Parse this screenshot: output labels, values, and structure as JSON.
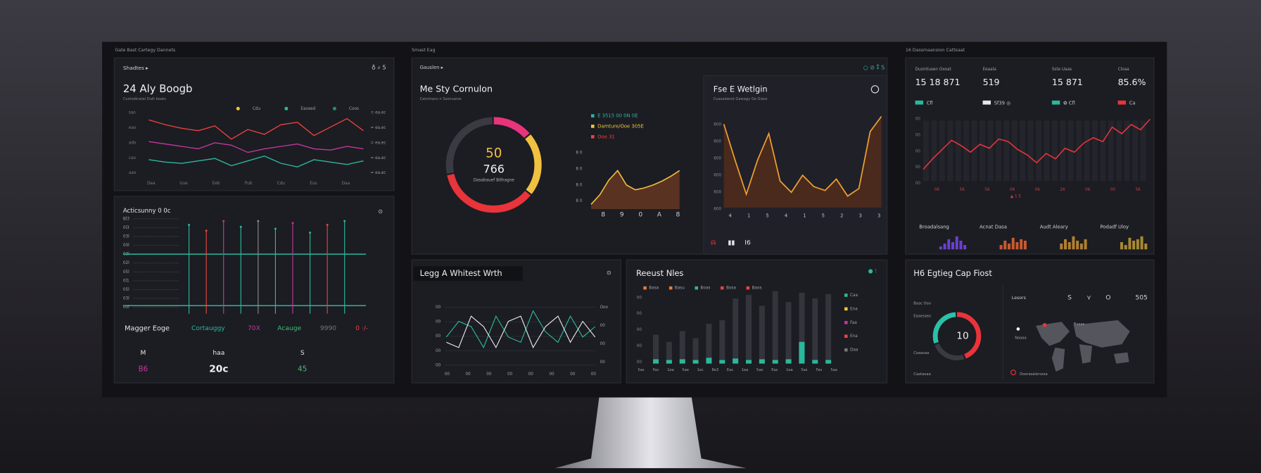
{
  "header": {
    "left": "Gate Bast Cartegy Dannets",
    "center": "Smast Eag",
    "right": "16 Dassmaansion Cattsaat"
  },
  "traffic": {
    "tab": "Shadtes ▸",
    "icons": "♁  ⌕  5",
    "title": "24 Aly Boogb",
    "subtitle": "Custodinatal Dutt boats",
    "legend": [
      {
        "name": "Cdu",
        "color": "#e8c83a"
      },
      {
        "name": "Eaoxed",
        "color": "#2bb89a"
      },
      {
        "name": "Coos",
        "color": "#1f8f7a"
      }
    ],
    "y_labels": [
      "sao",
      "eao",
      "ado",
      "cao",
      "aao"
    ],
    "right_labels": [
      "= ea.ec",
      "= ea.ec",
      "= ea.ec",
      "= ea.ec",
      "= ea.ec"
    ],
    "x_labels": [
      "Dea",
      "Uue",
      "Eeb",
      "Pub",
      "Cdu",
      "Eus",
      "Daa"
    ],
    "ylim": [
      0,
      100
    ],
    "series": [
      {
        "color": "#e8443a",
        "values": [
          88,
          80,
          74,
          70,
          78,
          56,
          72,
          64,
          80,
          84,
          62,
          76,
          90,
          70
        ]
      },
      {
        "color": "#c2389a",
        "values": [
          52,
          48,
          44,
          40,
          50,
          46,
          34,
          40,
          44,
          48,
          40,
          38,
          44,
          40
        ]
      },
      {
        "color": "#2bb89a",
        "values": [
          22,
          18,
          16,
          20,
          24,
          12,
          20,
          28,
          16,
          10,
          22,
          18,
          14,
          20
        ]
      }
    ]
  },
  "activity": {
    "title": "Acticsunny 0 0c",
    "icon": "⊙",
    "row_labels": [
      "Bl3",
      "0l3",
      "03l",
      "00l",
      "03l",
      "02l",
      "05l",
      "0l1",
      "05l",
      "03l",
      "00l"
    ],
    "ylim": [
      0,
      100
    ],
    "spikes": [
      {
        "color": "#2bb89a",
        "value": 92
      },
      {
        "color": "#e8443a",
        "value": 86
      },
      {
        "color": "#c2389a",
        "value": 96
      },
      {
        "color": "#2bb89a",
        "value": 90
      },
      {
        "color": "#8a8a8a",
        "value": 96
      },
      {
        "color": "#2bb89a",
        "value": 88
      },
      {
        "color": "#c2389a",
        "value": 94
      },
      {
        "color": "#2bb89a",
        "value": 84
      },
      {
        "color": "#e8443a",
        "value": 92
      },
      {
        "color": "#2bb89a",
        "value": 96
      }
    ],
    "footer": [
      {
        "text": "Magger Eoge",
        "color": "#e6e6ea"
      },
      {
        "text": "Cortauggy",
        "color": "#2bb89a"
      },
      {
        "text": "70X",
        "color": "#c2389a"
      },
      {
        "text": "Acauge",
        "color": "#3fc070"
      },
      {
        "text": "9990",
        "color": "#777"
      },
      {
        "text": "0 ·/-",
        "color": "#e8443a"
      }
    ],
    "table": {
      "header": [
        "M",
        "haa",
        "S"
      ],
      "rows": [
        [
          "B6",
          "20c",
          "45"
        ]
      ]
    }
  },
  "conversion": {
    "tab": "Gauslen ▸",
    "icons": "○  ⊘  ⁑  S",
    "title": "Me Sty Cornulon",
    "subtitle": "Catsilnacs n Ssonuaras",
    "donut": {
      "values": [
        14,
        22,
        36,
        28
      ],
      "colors": [
        "#e8347a",
        "#f0c040",
        "#e8343a",
        "#3a3a42"
      ]
    },
    "center_value": "50",
    "center_label": "766",
    "caption": "Dasabauef Bithagne",
    "legend": [
      {
        "text": "E 3515 00 0N 0E",
        "color": "#2bb89a"
      },
      {
        "text": "Damture/Ooe 305E",
        "color": "#e8c83a"
      },
      {
        "text": "Ooe 31",
        "color": "#e8443a"
      }
    ],
    "area": {
      "ylim": [
        0,
        100
      ],
      "values": [
        10,
        30,
        60,
        80,
        50,
        40,
        44,
        50,
        58,
        68,
        80
      ],
      "y_labels": [
        "8 0",
        "8 0",
        "8 0",
        "8 0"
      ],
      "x_labels": [
        "8",
        "9",
        "0",
        "A",
        "8"
      ]
    }
  },
  "weight": {
    "title": "Fse E Wetlgin",
    "subtitle": "Cuasadanst Gawagy Ge Giass",
    "ylim": [
      0,
      100
    ],
    "values": [
      88,
      50,
      14,
      50,
      78,
      28,
      16,
      34,
      22,
      18,
      30,
      12,
      20,
      80,
      96
    ],
    "y_labels": [
      "600",
      "600",
      "600",
      "600",
      "600",
      "600"
    ],
    "x_labels": [
      "4",
      "1",
      "5",
      "4",
      "1",
      "5",
      "2",
      "3",
      "3"
    ],
    "footer": [
      {
        "text": "ᕱ",
        "color": "#e8443a"
      },
      {
        "text": "▮▮",
        "color": "#e6e6ea"
      },
      {
        "text": "I6",
        "color": "#e6e6ea"
      }
    ]
  },
  "stats": {
    "items": [
      {
        "label": "Dusmtusen Oxoat",
        "value": "15 18 871",
        "badge": "Cfl",
        "color": "#2bb89a"
      },
      {
        "label": "Eeaala",
        "value": "519",
        "badge": "Sf39 ◎",
        "color": "#e6e6ea"
      },
      {
        "label": "Sste Uaas",
        "value": "15 871",
        "badge": "✿ Cfl",
        "color": "#2bb89a"
      },
      {
        "label": "Cloaa",
        "value": "85.6%",
        "badge": "Ca",
        "color": "#e8343a"
      }
    ],
    "ylim": [
      0,
      100
    ],
    "values": [
      14,
      30,
      44,
      58,
      50,
      40,
      52,
      46,
      60,
      56,
      44,
      36,
      24,
      38,
      30,
      46,
      40,
      54,
      62,
      56,
      78,
      68,
      82,
      74,
      90
    ],
    "y_labels": [
      "00",
      "00",
      "00",
      "00",
      "00"
    ],
    "x_labels": [
      "06",
      "56",
      "56",
      "06",
      "06",
      "26",
      "06",
      "00",
      "56"
    ],
    "marker": "▲ 1 5",
    "mini": [
      {
        "label": "Broadalsang",
        "color": "#6a40d0",
        "values": [
          20,
          40,
          70,
          50,
          90,
          60,
          30
        ]
      },
      {
        "label": "Acnat Dasa",
        "color": "#c85a30",
        "values": [
          30,
          60,
          40,
          80,
          50,
          70,
          60
        ]
      },
      {
        "label": "Audt Aleary",
        "color": "#b08030",
        "values": [
          40,
          70,
          50,
          90,
          60,
          40,
          70
        ]
      },
      {
        "label": "Podadf Uloy",
        "color": "#a88a30",
        "values": [
          50,
          30,
          80,
          60,
          70,
          90,
          40
        ]
      }
    ]
  },
  "waves": {
    "title": "Legg A Whitest Wrth",
    "icon": "⊙",
    "ylim": [
      0,
      100
    ],
    "series": [
      {
        "color": "#2bb89a",
        "values": [
          40,
          70,
          60,
          20,
          80,
          40,
          30,
          90,
          50,
          30,
          80,
          40,
          60
        ]
      },
      {
        "color": "#e6e6ea",
        "values": [
          30,
          20,
          80,
          60,
          20,
          70,
          80,
          20,
          60,
          80,
          30,
          70,
          40
        ]
      }
    ],
    "y_labels": [
      "00",
      "00",
      "00",
      "00",
      "00"
    ],
    "right_labels": [
      "Ooo",
      "00",
      "00",
      "00"
    ],
    "x_labels": [
      "00",
      "00",
      "00",
      "00",
      "00",
      "00",
      "00",
      "00"
    ]
  },
  "bars": {
    "title": "Reeust Nles",
    "icons": "●  ⁝",
    "legend": [
      {
        "name": "Basa",
        "color": "#e87a2a"
      },
      {
        "name": "Basu",
        "color": "#e87a2a"
      },
      {
        "name": "Boas",
        "color": "#2bb89a"
      },
      {
        "name": "Bosa",
        "color": "#e8443a"
      },
      {
        "name": "Baos",
        "color": "#e8443a"
      }
    ],
    "ylim": [
      0,
      100
    ],
    "values": [
      40,
      30,
      45,
      35,
      55,
      60,
      90,
      95,
      80,
      100,
      85,
      98,
      90,
      96
    ],
    "accent": [
      6,
      5,
      6,
      5,
      8,
      5,
      7,
      5,
      6,
      5,
      6,
      30,
      5,
      5
    ],
    "y_labels": [
      "00",
      "00",
      "00",
      "00",
      "00"
    ],
    "x_labels": [
      "5as",
      "Fas",
      "1ea",
      "5ae",
      "1ec",
      "8e3",
      "Eas",
      "1ea",
      "5ae",
      "Eas",
      "1ea",
      "5as",
      "Fas",
      "5aa"
    ],
    "side_labels": [
      {
        "text": "Caa",
        "color": "#2bb89a"
      },
      {
        "text": "Ena",
        "color": "#e8c83a"
      },
      {
        "text": "Faa",
        "color": "#c2389a"
      },
      {
        "text": "Ena",
        "color": "#e8443a"
      },
      {
        "text": "Daa",
        "color": "#777"
      }
    ]
  },
  "map": {
    "title": "H6 Egtieg Cap Fiost",
    "donut": {
      "values": [
        45,
        25,
        30
      ],
      "colors": [
        "#e8343a",
        "#3a3a42",
        "#2bc0a8"
      ]
    },
    "center": "10",
    "labels": [
      "Baac Ooo",
      "Eaaesaeo",
      "Coaasaa",
      "Caataoaa"
    ],
    "toolbar": [
      "Lesors",
      "S",
      "⋎",
      "O",
      "505"
    ],
    "map_labels": [
      "Naaaa",
      "Baaas"
    ],
    "note": "Doerasalerssea"
  }
}
